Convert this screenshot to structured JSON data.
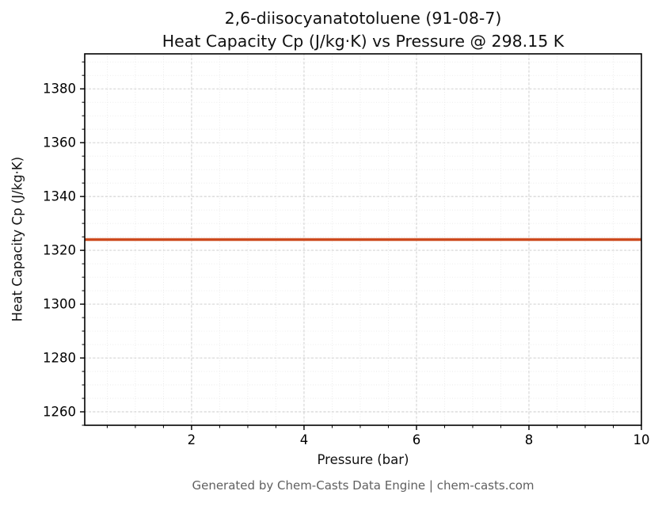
{
  "header": {
    "title_line1": "2,6-diisocyanatotoluene (91-08-7)",
    "title_line2": "Heat Capacity Cp (J/kg·K) vs Pressure @ 298.15 K"
  },
  "axes": {
    "xlabel": "Pressure (bar)",
    "ylabel": "Heat Capacity Cp (J/kg·K)"
  },
  "footer": {
    "text": "Generated by Chem-Casts Data Engine | chem-casts.com"
  },
  "chart_data": {
    "type": "line",
    "title": "2,6-diisocyanatotoluene (91-08-7)\nHeat Capacity Cp (J/kg·K) vs Pressure @ 298.15 K",
    "xlabel": "Pressure (bar)",
    "ylabel": "Heat Capacity Cp (J/kg·K)",
    "xlim": [
      0.1,
      10
    ],
    "ylim": [
      1255,
      1393
    ],
    "x_ticks": [
      2,
      4,
      6,
      8,
      10
    ],
    "y_ticks": [
      1260,
      1280,
      1300,
      1320,
      1340,
      1360,
      1380
    ],
    "x_minor_step": 0.5,
    "y_minor_step": 5,
    "grid": true,
    "legend": "none",
    "series": [
      {
        "name": "Heat Capacity Cp",
        "x": [
          0.1,
          10
        ],
        "values": [
          1324,
          1324
        ],
        "color": "#cd4a1e"
      }
    ],
    "style": {
      "major_grid_color": "#c9c9c9",
      "minor_grid_color": "#e3e3e3",
      "spine_color": "#000000",
      "tick_color": "#000000",
      "line_width": 3.5,
      "footer_color": "#606060"
    }
  }
}
